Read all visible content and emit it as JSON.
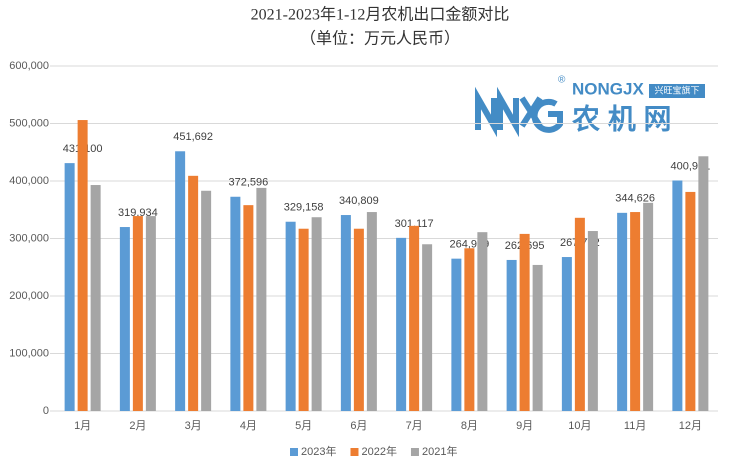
{
  "chart_data": {
    "type": "bar",
    "title": "2021-2023年1-12月农机出口金额对比",
    "subtitle": "（单位：万元人民币）",
    "categories": [
      "1月",
      "2月",
      "3月",
      "4月",
      "5月",
      "6月",
      "7月",
      "8月",
      "9月",
      "10月",
      "11月",
      "12月"
    ],
    "series": [
      {
        "name": "2023年",
        "color": "#5b9bd5",
        "values": [
          431100,
          319934,
          451692,
          372596,
          329158,
          340809,
          301117,
          264939,
          262695,
          267762,
          344626,
          400901
        ],
        "value_labels": [
          "431,100",
          "319,934",
          "451,692",
          "372,596",
          "329,158",
          "340,809",
          "301,117",
          "264,939",
          "262,695",
          "267,762",
          "344,626",
          "400,901"
        ]
      },
      {
        "name": "2022年",
        "color": "#ed7d31",
        "values": [
          506000,
          339000,
          409000,
          358000,
          317000,
          317000,
          322000,
          283000,
          308000,
          336000,
          346000,
          381000
        ]
      },
      {
        "name": "2021年",
        "color": "#a5a5a5",
        "values": [
          393000,
          339000,
          383000,
          388000,
          337000,
          346000,
          290000,
          311000,
          254000,
          313000,
          362000,
          443000
        ]
      }
    ],
    "ylim": [
      0,
      600000
    ],
    "yticks": [
      0,
      {
        "value": 100000,
        "label": "100,000"
      },
      {
        "value": 200000,
        "label": "200,000"
      },
      {
        "value": 300000,
        "label": "300,000"
      },
      {
        "value": 400000,
        "label": "400,000"
      },
      {
        "value": 500000,
        "label": "500,000"
      },
      {
        "value": 600000,
        "label": "600,000"
      }
    ],
    "grid": true,
    "legend": "bottom"
  },
  "logo": {
    "brand": "NONGJX",
    "registered": "®",
    "tag": "兴旺宝旗下",
    "name": "农 机 网"
  }
}
